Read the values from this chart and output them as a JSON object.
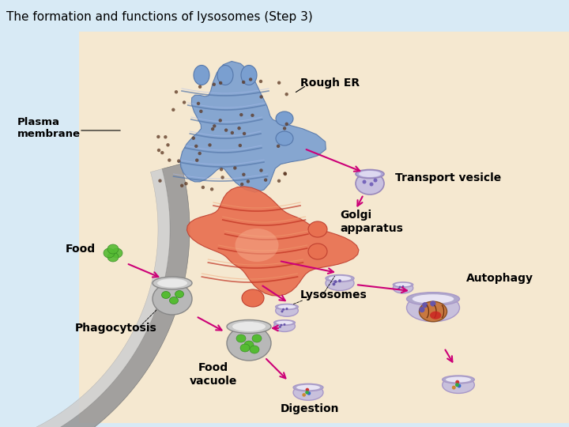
{
  "title": "The formation and functions of lysosomes (Step 3)",
  "title_fontsize": 11,
  "title_color": "#000000",
  "bg_color_left": "#d8eaf5",
  "bg_color_main": "#f5e8d0",
  "labels": {
    "plasma_membrane": "Plasma\nmembrane",
    "rough_er": "Rough ER",
    "transport_vesicle": "Transport vesicle",
    "golgi": "Golgi\napparatus",
    "food": "Food",
    "lysosomes": "Lysosomes",
    "autophagy": "Autophagy",
    "phagocytosis": "Phagocytosis",
    "food_vacuole": "Food\nvacuole",
    "digestion": "Digestion"
  },
  "arrow_color": "#cc0077",
  "label_fontsize": 9,
  "mem_outer_color": "#b0b0b0",
  "mem_inner_color": "#d8d8d8"
}
